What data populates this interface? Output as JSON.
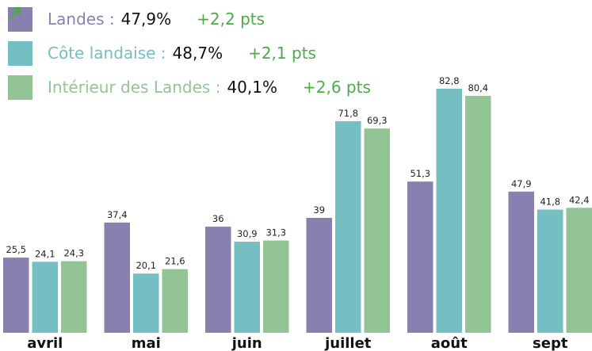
{
  "chart_data": {
    "type": "bar",
    "categories": [
      "avril",
      "mai",
      "juin",
      "juillet",
      "août",
      "sept"
    ],
    "series": [
      {
        "name": "Landes :",
        "color": "#8a80b0",
        "legend_value": "47,9%",
        "legend_change": "+2,2 pts",
        "values": [
          25.5,
          37.4,
          36,
          39,
          51.3,
          47.9
        ],
        "value_labels": [
          "25,5",
          "37,4",
          "36",
          "39",
          "51,3",
          "47,9"
        ]
      },
      {
        "name": "Côte landaise :",
        "color": "#75bec2",
        "legend_value": "48,7%",
        "legend_change": "+2,1 pts",
        "values": [
          24.1,
          20.1,
          30.9,
          71.8,
          82.8,
          41.8
        ],
        "value_labels": [
          "24,1",
          "20,1",
          "30,9",
          "71,8",
          "82,8",
          "41,8"
        ]
      },
      {
        "name": "Intérieur des Landes :",
        "color": "#93c496",
        "legend_value": "40,1%",
        "legend_change": "+2,6 pts",
        "values": [
          24.3,
          21.6,
          31.3,
          69.3,
          80.4,
          42.4
        ],
        "value_labels": [
          "24,3",
          "21,6",
          "31,3",
          "69,3",
          "80,4",
          "42,4"
        ]
      }
    ]
  }
}
